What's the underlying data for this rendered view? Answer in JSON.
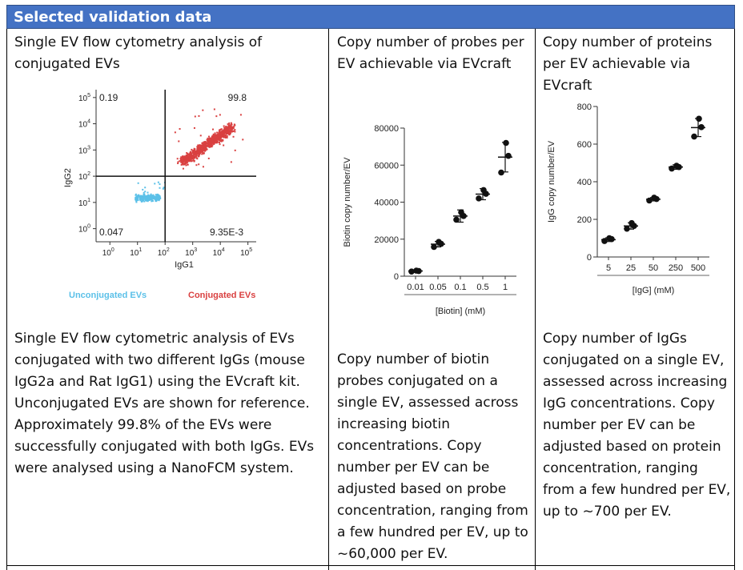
{
  "header": {
    "title": "Selected validation data"
  },
  "columns": [
    {
      "heading": "Single EV flow cytometry analysis of conjugated EVs",
      "description": "Single EV flow cytometric analysis of EVs conjugated with two different IgGs (mouse IgG2a and Rat IgG1) using the EVcraft kit. Unconjugated EVs are shown for reference. Approximately 99.8% of the EVs were successfully conjugated with both IgGs. EVs were analysed using a NanoFCM system."
    },
    {
      "heading": "Copy number of probes per EV achievable via EVcraft",
      "description": "Copy number of biotin probes conjugated on a single EV, assessed across increasing biotin concentrations. Copy number per EV can be adjusted based on probe concentration, ranging from a few hundred per EV, up to ~60,000 per EV."
    },
    {
      "heading": "Copy number of proteins per EV achievable via EVcraft",
      "description": "Copy number of IgGs conjugated on a single EV, assessed across increasing IgG concentrations. Copy number per EV can be adjusted based on protein concentration, ranging from a few hundred per EV, up to ~700 per EV."
    }
  ],
  "chart_data": [
    {
      "type": "scatter",
      "xlabel": "IgG1",
      "ylabel": "IgG2",
      "scale": "log",
      "xlim_exp": [
        -0.5,
        5.3
      ],
      "ylim_exp": [
        -0.5,
        5.3
      ],
      "x_ticks": [
        "10^0",
        "10^1",
        "10^2",
        "10^3",
        "10^4",
        "10^5"
      ],
      "y_ticks": [
        "10^0",
        "10^1",
        "10^2",
        "10^3",
        "10^4",
        "10^5"
      ],
      "gate_exp": 2,
      "quadrants": {
        "top_left": "0.19",
        "top_right": "99.8",
        "bottom_left": "0.047",
        "bottom_right": "9.35E-3"
      },
      "legend": [
        {
          "name": "Unconjugated EVs",
          "color": "#5bc0e8"
        },
        {
          "name": "Conjugated EVs",
          "color": "#d94040"
        }
      ]
    },
    {
      "type": "scatter",
      "categories": [
        "0.01",
        "0.05",
        "0.1",
        "0.5",
        "1"
      ],
      "xlabel": "[Biotin] (mM)",
      "ylabel": "Biotin copy number/EV",
      "ylim": [
        0,
        80000
      ],
      "yticks": [
        0,
        20000,
        40000,
        60000,
        80000
      ],
      "ytick_labels": [
        "0",
        "20000",
        "40000",
        "60000",
        "80000"
      ],
      "points": [
        [
          2500,
          2800,
          3000
        ],
        [
          15800,
          17500,
          18500
        ],
        [
          30500,
          32500,
          34500
        ],
        [
          42000,
          44500,
          46500
        ],
        [
          56000,
          65000,
          72000
        ]
      ],
      "means": [
        2800,
        17300,
        32500,
        44300,
        64300
      ],
      "errors": [
        300,
        1500,
        3300,
        3000,
        8000
      ]
    },
    {
      "type": "scatter",
      "categories": [
        "5",
        "25",
        "50",
        "250",
        "500"
      ],
      "xlabel": "[IgG] (mM)",
      "ylabel": "IgG copy number/EV",
      "ylim": [
        0,
        800
      ],
      "yticks": [
        0,
        200,
        400,
        600,
        800
      ],
      "ytick_labels": [
        "0",
        "200",
        "400",
        "600",
        "800"
      ],
      "points": [
        [
          85,
          95,
          100
        ],
        [
          150,
          165,
          180
        ],
        [
          300,
          308,
          315
        ],
        [
          470,
          478,
          485
        ],
        [
          640,
          690,
          735
        ]
      ],
      "means": [
        92,
        165,
        307,
        478,
        688
      ],
      "errors": [
        10,
        17,
        9,
        12,
        48
      ]
    }
  ]
}
